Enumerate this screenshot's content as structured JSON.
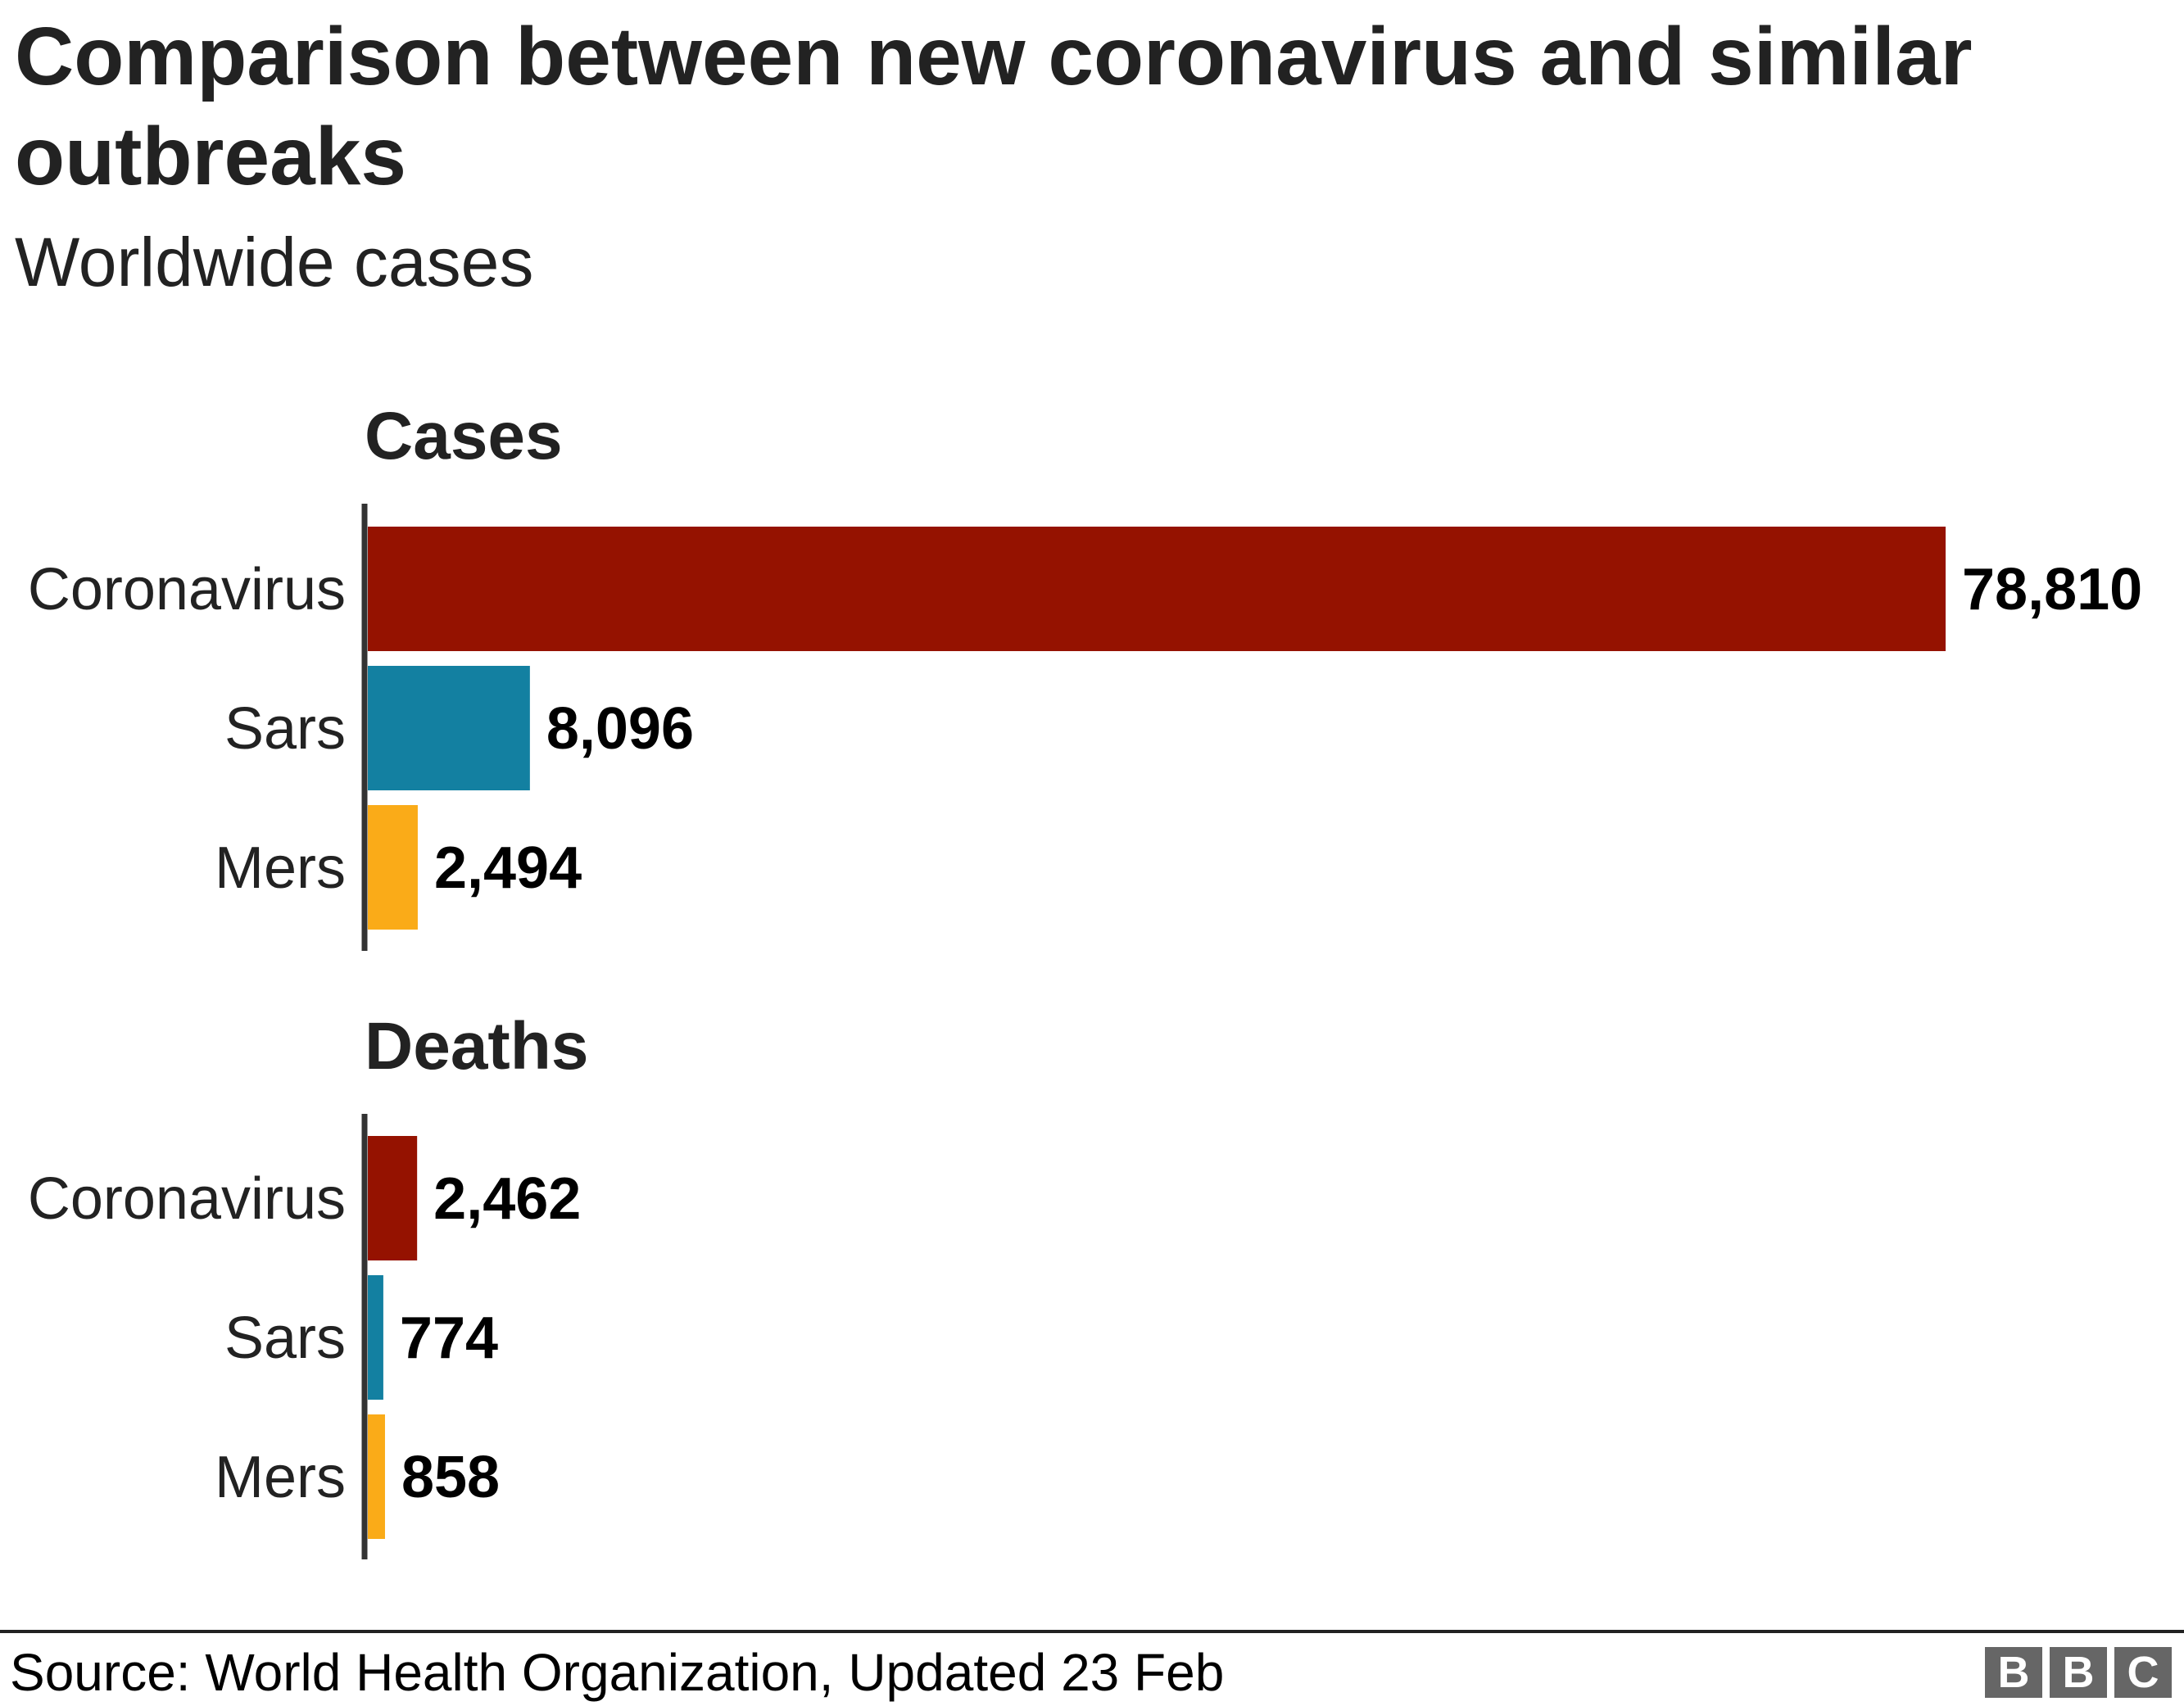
{
  "title": "Comparison between new coronavirus and similar outbreaks",
  "subtitle": "Worldwide cases",
  "source": "Source: World Health Organization, Updated 23 Feb",
  "logo": [
    "B",
    "B",
    "C"
  ],
  "chart_data": [
    {
      "type": "bar",
      "orientation": "horizontal",
      "title": "Cases",
      "categories": [
        "Coronavirus",
        "Sars",
        "Mers"
      ],
      "values": [
        78810,
        8096,
        2494
      ],
      "value_labels": [
        "78,810",
        "8,096",
        "2,494"
      ],
      "colors": [
        "#951200",
        "#1380A1",
        "#FAAB18"
      ],
      "xlim": [
        0,
        78810
      ],
      "grid": false
    },
    {
      "type": "bar",
      "orientation": "horizontal",
      "title": "Deaths",
      "categories": [
        "Coronavirus",
        "Sars",
        "Mers"
      ],
      "values": [
        2462,
        774,
        858
      ],
      "value_labels": [
        "2,462",
        "774",
        "858"
      ],
      "colors": [
        "#951200",
        "#1380A1",
        "#FAAB18"
      ],
      "xlim": [
        0,
        78810
      ],
      "grid": false
    }
  ]
}
